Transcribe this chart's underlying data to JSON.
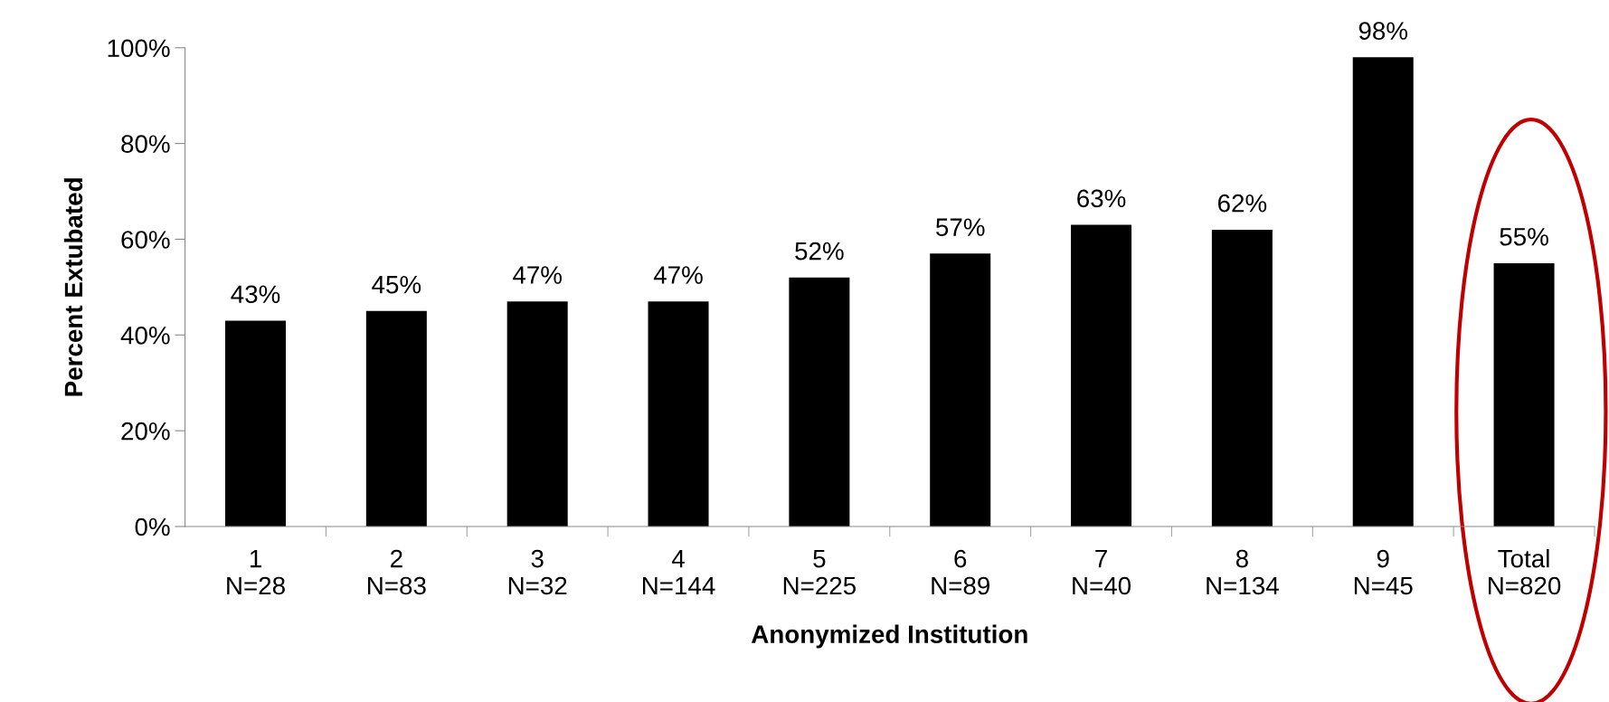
{
  "chart_data": {
    "type": "bar",
    "categories": [
      "1\nN=28",
      "2\nN=83",
      "3\nN=32",
      "4\nN=144",
      "5\nN=225",
      "6\nN=89",
      "7\nN=40",
      "8\nN=134",
      "9\nN=45",
      "Total\nN=820"
    ],
    "values": [
      43,
      45,
      47,
      47,
      52,
      57,
      63,
      62,
      98,
      55
    ],
    "value_labels": [
      "43%",
      "45%",
      "47%",
      "47%",
      "52%",
      "57%",
      "63%",
      "62%",
      "98%",
      "55%"
    ],
    "color": "#000000",
    "xlabel": "Anonymized Institution",
    "ylabel": "Percent Extubated",
    "ylim": [
      0,
      100
    ],
    "yticks": [
      {
        "value": 0,
        "label": "0%"
      },
      {
        "value": 20,
        "label": "20%"
      },
      {
        "value": 40,
        "label": "40%"
      },
      {
        "value": 60,
        "label": "60%"
      },
      {
        "value": 80,
        "label": "80%"
      },
      {
        "value": 100,
        "label": "100%"
      }
    ],
    "grid": false,
    "legend": false
  }
}
